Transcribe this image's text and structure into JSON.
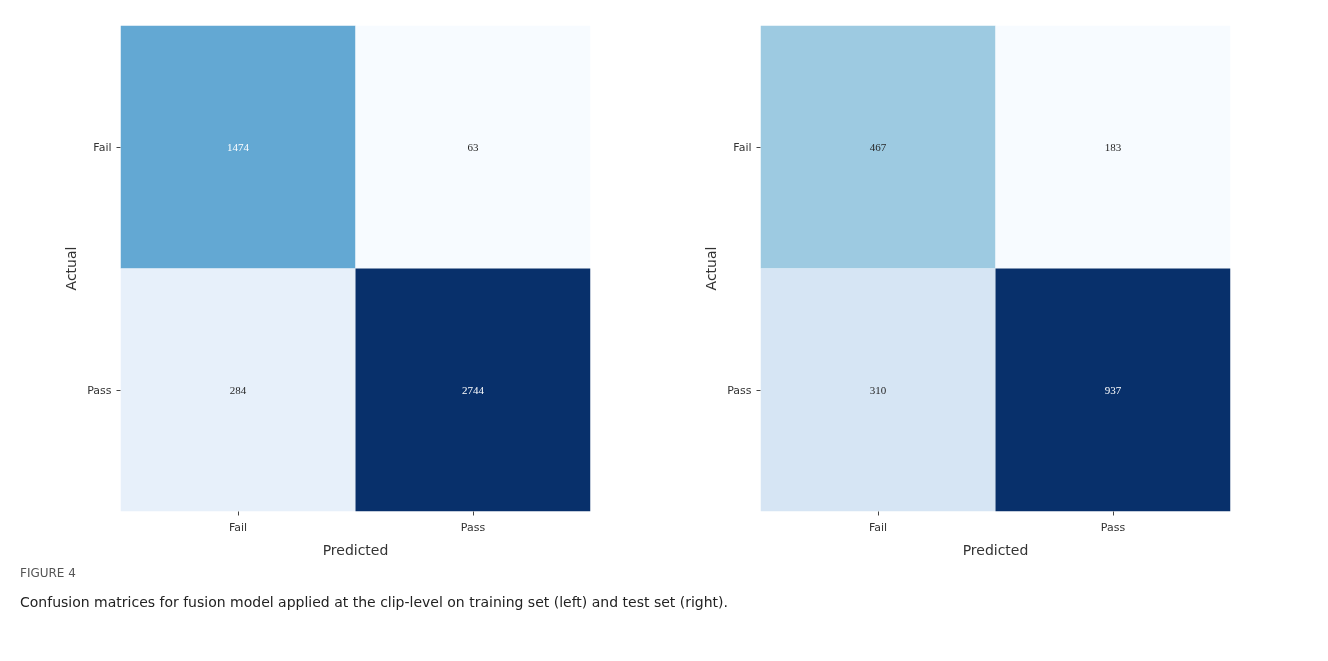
{
  "chart_data": [
    {
      "type": "heatmap",
      "xlabel": "Predicted",
      "ylabel": "Actual",
      "categories": [
        "Fail",
        "Pass"
      ],
      "y_categories": [
        "Fail",
        "Pass"
      ],
      "cells": [
        [
          1474,
          63
        ],
        [
          284,
          2744
        ]
      ],
      "data_labels": true,
      "grid": false,
      "annotations": [
        "FIGURE 4",
        "Confusion matrices for fusion model applied at the clip-level on training set (left) and test set (right)."
      ]
    },
    {
      "type": "heatmap",
      "xlabel": "Predicted",
      "ylabel": "Actual",
      "categories": [
        "Fail",
        "Pass"
      ],
      "y_categories": [
        "Fail",
        "Pass"
      ],
      "cells": [
        [
          467,
          183
        ],
        [
          310,
          937
        ]
      ],
      "data_labels": true,
      "grid": false
    }
  ]
}
